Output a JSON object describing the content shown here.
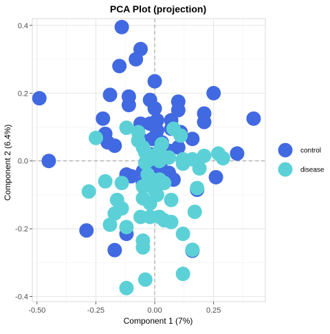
{
  "chart_data": {
    "type": "scatter",
    "title": "PCA Plot (projection)",
    "xlabel": "Component 1 (7%)",
    "ylabel": "Component 2 (6.4%)",
    "xlim": [
      -0.52,
      0.47
    ],
    "ylim": [
      -0.415,
      0.42
    ],
    "x_ticks": [
      -0.5,
      -0.25,
      0.0,
      0.25
    ],
    "x_tick_labels": [
      "-0.50",
      "-0.25",
      "0.00",
      "0.25"
    ],
    "y_ticks": [
      -0.4,
      -0.2,
      0.0,
      0.2,
      0.4
    ],
    "y_tick_labels": [
      "-0.4",
      "-0.2",
      "0.0",
      "0.2",
      "0.4"
    ],
    "grid": true,
    "zero_lines": true,
    "legend_position": "right",
    "series": [
      {
        "name": "control",
        "color": "#4169e1",
        "points": [
          [
            -0.49,
            0.185
          ],
          [
            -0.45,
            0.0
          ],
          [
            -0.14,
            0.395
          ],
          [
            -0.06,
            0.33
          ],
          [
            -0.08,
            0.3
          ],
          [
            -0.15,
            0.28
          ],
          [
            0.0,
            0.235
          ],
          [
            -0.19,
            0.195
          ],
          [
            -0.11,
            0.19
          ],
          [
            -0.11,
            0.165
          ],
          [
            -0.22,
            0.125
          ],
          [
            -0.02,
            0.18
          ],
          [
            0.0,
            0.155
          ],
          [
            0.1,
            0.175
          ],
          [
            0.1,
            0.15
          ],
          [
            0.25,
            0.2
          ],
          [
            0.21,
            0.14
          ],
          [
            0.21,
            0.115
          ],
          [
            0.42,
            0.125
          ],
          [
            -0.21,
            0.08
          ],
          [
            -0.2,
            0.055
          ],
          [
            -0.17,
            0.045
          ],
          [
            -0.06,
            0.11
          ],
          [
            -0.02,
            0.11
          ],
          [
            0.01,
            0.12
          ],
          [
            0.01,
            0.09
          ],
          [
            0.07,
            0.12
          ],
          [
            0.07,
            0.095
          ],
          [
            0.11,
            0.085
          ],
          [
            0.16,
            0.065
          ],
          [
            -0.01,
            0.065
          ],
          [
            -0.05,
            0.06
          ],
          [
            0.03,
            0.055
          ],
          [
            0.1,
            0.04
          ],
          [
            0.06,
            0.03
          ],
          [
            0.35,
            0.022
          ],
          [
            -0.02,
            0.02
          ],
          [
            0.03,
            0.0
          ],
          [
            -0.12,
            -0.04
          ],
          [
            -0.1,
            -0.045
          ],
          [
            -0.05,
            -0.03
          ],
          [
            0.01,
            -0.025
          ],
          [
            0.06,
            -0.035
          ],
          [
            0.08,
            -0.055
          ],
          [
            0.26,
            -0.048
          ],
          [
            -0.05,
            -0.065
          ],
          [
            0.18,
            -0.085
          ],
          [
            -0.29,
            -0.205
          ],
          [
            -0.12,
            -0.215
          ],
          [
            -0.17,
            -0.263
          ],
          [
            0.16,
            -0.265
          ]
        ]
      },
      {
        "name": "disease",
        "color": "#5bd1d7",
        "points": [
          [
            -0.12,
            0.098
          ],
          [
            -0.25,
            0.068
          ],
          [
            -0.07,
            0.085
          ],
          [
            -0.07,
            0.06
          ],
          [
            -0.05,
            0.04
          ],
          [
            -0.04,
            0.025
          ],
          [
            0.02,
            0.03
          ],
          [
            0.03,
            0.05
          ],
          [
            0.08,
            0.095
          ],
          [
            0.11,
            0.075
          ],
          [
            0.02,
            0.0
          ],
          [
            0.06,
            0.01
          ],
          [
            0.12,
            0.005
          ],
          [
            0.16,
            0.005
          ],
          [
            0.18,
            0.0
          ],
          [
            0.21,
            0.015
          ],
          [
            0.27,
            0.022
          ],
          [
            0.29,
            0.008
          ],
          [
            0.12,
            -0.008
          ],
          [
            0.19,
            -0.022
          ],
          [
            -0.21,
            -0.06
          ],
          [
            -0.14,
            -0.065
          ],
          [
            -0.28,
            -0.09
          ],
          [
            -0.16,
            -0.115
          ],
          [
            -0.14,
            -0.14
          ],
          [
            -0.17,
            -0.155
          ],
          [
            -0.04,
            -0.005
          ],
          [
            -0.03,
            -0.04
          ],
          [
            -0.05,
            -0.075
          ],
          [
            -0.01,
            -0.055
          ],
          [
            0.0,
            -0.085
          ],
          [
            0.02,
            -0.055
          ],
          [
            0.04,
            -0.065
          ],
          [
            -0.05,
            -0.11
          ],
          [
            0.01,
            -0.1
          ],
          [
            0.07,
            -0.115
          ],
          [
            0.18,
            -0.08
          ],
          [
            -0.02,
            -0.125
          ],
          [
            -0.06,
            -0.165
          ],
          [
            -0.02,
            -0.165
          ],
          [
            0.02,
            -0.165
          ],
          [
            0.04,
            -0.175
          ],
          [
            0.07,
            -0.18
          ],
          [
            0.17,
            -0.15
          ],
          [
            0.12,
            -0.215
          ],
          [
            -0.19,
            -0.188
          ],
          [
            -0.12,
            -0.195
          ],
          [
            -0.05,
            -0.235
          ],
          [
            -0.05,
            -0.255
          ],
          [
            0.16,
            -0.262
          ],
          [
            -0.12,
            -0.375
          ],
          [
            -0.04,
            -0.35
          ],
          [
            0.12,
            -0.333
          ],
          [
            0.0,
            0.015
          ],
          [
            -0.03,
            0.0
          ]
        ]
      }
    ]
  }
}
